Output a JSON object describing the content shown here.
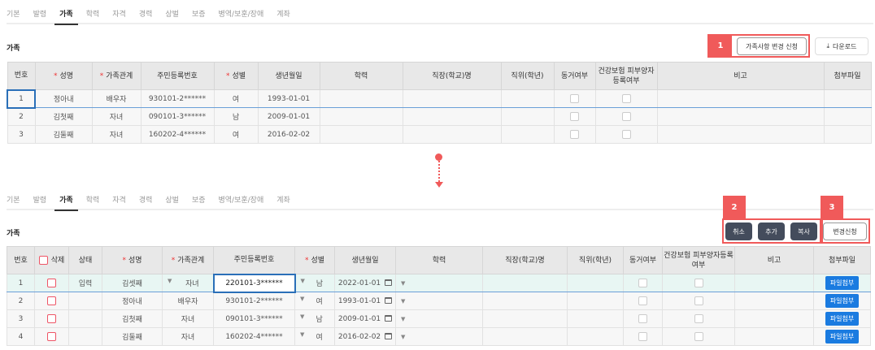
{
  "tabs": [
    "기본",
    "발령",
    "가족",
    "학력",
    "자격",
    "경력",
    "상벌",
    "보증",
    "병역/보훈/장애",
    "계좌"
  ],
  "active_tab": "가족",
  "section_title": "가족",
  "before": {
    "buttons": {
      "request": "가족사항 변경 신청",
      "download": "다운로드"
    },
    "badge": "1",
    "headers": [
      "번호",
      "성명",
      "가족관계",
      "주민등록번호",
      "성별",
      "생년월일",
      "학력",
      "직장(학교)명",
      "직위(학년)",
      "동거여부",
      "건강보험 피부양자등록여부",
      "비고",
      "첨부파일"
    ],
    "rows": [
      {
        "no": "1",
        "name": "정아내",
        "rel": "배우자",
        "id": "930101-2******",
        "sex": "여",
        "birth": "1993-01-01"
      },
      {
        "no": "2",
        "name": "김첫째",
        "rel": "자녀",
        "id": "090101-3******",
        "sex": "남",
        "birth": "2009-01-01"
      },
      {
        "no": "3",
        "name": "김둘째",
        "rel": "자녀",
        "id": "160202-4******",
        "sex": "여",
        "birth": "2016-02-02"
      }
    ]
  },
  "after": {
    "buttons": {
      "cancel": "취소",
      "add": "추가",
      "copy": "복사",
      "request": "변경신청"
    },
    "badges": [
      "2",
      "3"
    ],
    "headers": [
      "번호",
      "삭제",
      "상태",
      "성명",
      "가족관계",
      "주민등록번호",
      "성별",
      "생년월일",
      "학력",
      "직장(학교)명",
      "직위(학년)",
      "동거여부",
      "건강보험 피부양자등록여부",
      "비고",
      "첨부파일"
    ],
    "attach_label": "파일첨부",
    "rows": [
      {
        "no": "1",
        "status": "입력",
        "name": "김셋째",
        "rel": "자녀",
        "id": "220101-3******",
        "sex": "남",
        "birth": "2022-01-01"
      },
      {
        "no": "2",
        "status": "",
        "name": "정아내",
        "rel": "배우자",
        "id": "930101-2******",
        "sex": "여",
        "birth": "1993-01-01"
      },
      {
        "no": "3",
        "status": "",
        "name": "김첫째",
        "rel": "자녀",
        "id": "090101-3******",
        "sex": "남",
        "birth": "2009-01-01"
      },
      {
        "no": "4",
        "status": "",
        "name": "김둘째",
        "rel": "자녀",
        "id": "160202-4******",
        "sex": "여",
        "birth": "2016-02-02"
      }
    ]
  },
  "colors": {
    "highlight": "#f05a5a",
    "attach": "#1a7be0",
    "dark_button": "#444c5c"
  }
}
